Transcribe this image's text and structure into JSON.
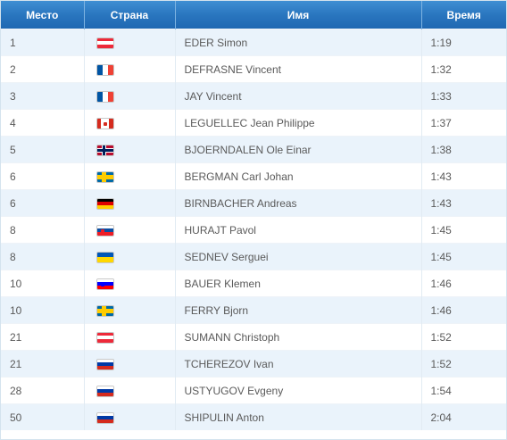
{
  "header": {
    "rank": "Место",
    "country": "Страна",
    "name": "Имя",
    "time": "Время"
  },
  "colors": {
    "header_blue": "#2a76bf",
    "row_alt": "#eaf3fb",
    "text": "#5a5a5a"
  },
  "flags": {
    "austria": {
      "icon": "austria-flag-icon",
      "dir": "h",
      "stripes": [
        "#ed2939",
        "#ffffff",
        "#ed2939"
      ]
    },
    "france": {
      "icon": "france-flag-icon",
      "dir": "v",
      "stripes": [
        "#0055a4",
        "#ffffff",
        "#ef4135"
      ]
    },
    "canada": {
      "icon": "canada-flag-icon",
      "dir": "v",
      "stripes": [
        "#d52b1e",
        "#ffffff",
        "#d52b1e"
      ],
      "mark": "#d52b1e"
    },
    "norway": {
      "icon": "norway-flag-icon",
      "dir": "cross",
      "field": "#ba0c2f",
      "cross_outer": "#ffffff",
      "cross_inner": "#00205b"
    },
    "sweden": {
      "icon": "sweden-flag-icon",
      "dir": "cross",
      "field": "#006aa7",
      "cross_outer": "#fecc00",
      "cross_inner": "#fecc00"
    },
    "germany": {
      "icon": "germany-flag-icon",
      "dir": "h",
      "stripes": [
        "#000000",
        "#dd0000",
        "#ffce00"
      ]
    },
    "slovakia": {
      "icon": "slovakia-flag-icon",
      "dir": "h",
      "stripes": [
        "#ffffff",
        "#0b4ea2",
        "#ee1c25"
      ],
      "mark": "#ee1c25"
    },
    "ukraine": {
      "icon": "ukraine-flag-icon",
      "dir": "h",
      "stripes": [
        "#0057b7",
        "#ffd700"
      ]
    },
    "slovenia": {
      "icon": "slovenia-flag-icon",
      "dir": "h",
      "stripes": [
        "#ffffff",
        "#0000ff",
        "#ff0000"
      ],
      "mark": "#0000ff"
    },
    "russia": {
      "icon": "russia-flag-icon",
      "dir": "h",
      "stripes": [
        "#ffffff",
        "#0039a6",
        "#d52b1e"
      ]
    }
  },
  "rows": [
    {
      "rank": "1",
      "flag": "austria",
      "name": "EDER Simon",
      "time": "1:19"
    },
    {
      "rank": "2",
      "flag": "france",
      "name": "DEFRASNE Vincent",
      "time": "1:32"
    },
    {
      "rank": "3",
      "flag": "france",
      "name": "JAY Vincent",
      "time": "1:33"
    },
    {
      "rank": "4",
      "flag": "canada",
      "name": "LEGUELLEC Jean Philippe",
      "time": "1:37"
    },
    {
      "rank": "5",
      "flag": "norway",
      "name": "BJOERNDALEN Ole Einar",
      "time": "1:38"
    },
    {
      "rank": "6",
      "flag": "sweden",
      "name": "BERGMAN Carl Johan",
      "time": "1:43"
    },
    {
      "rank": "6",
      "flag": "germany",
      "name": "BIRNBACHER Andreas",
      "time": "1:43"
    },
    {
      "rank": "8",
      "flag": "slovakia",
      "name": "HURAJT Pavol",
      "time": "1:45"
    },
    {
      "rank": "8",
      "flag": "ukraine",
      "name": "SEDNEV Serguei",
      "time": "1:45"
    },
    {
      "rank": "10",
      "flag": "slovenia",
      "name": "BAUER Klemen",
      "time": "1:46"
    },
    {
      "rank": "10",
      "flag": "sweden",
      "name": "FERRY Bjorn",
      "time": "1:46"
    },
    {
      "rank": "21",
      "flag": "austria",
      "name": "SUMANN Christoph",
      "time": "1:52"
    },
    {
      "rank": "21",
      "flag": "russia",
      "name": "TCHEREZOV Ivan",
      "time": "1:52"
    },
    {
      "rank": "28",
      "flag": "russia",
      "name": "USTYUGOV Evgeny",
      "time": "1:54"
    },
    {
      "rank": "50",
      "flag": "russia",
      "name": "SHIPULIN Anton",
      "time": "2:04"
    }
  ]
}
